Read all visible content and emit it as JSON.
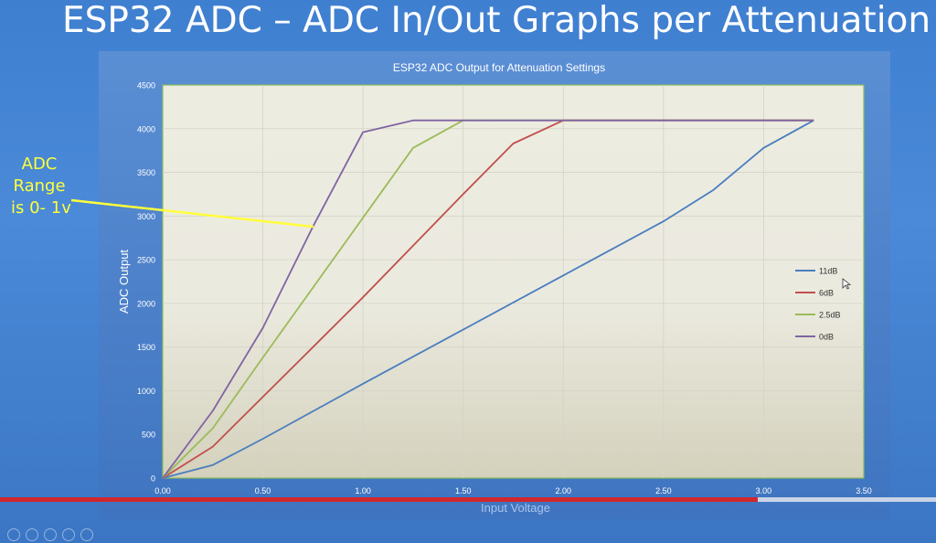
{
  "slide": {
    "title": "ESP32 ADC – ADC In/Out Graphs per Attenuation"
  },
  "callout": {
    "lines": [
      "ADC",
      "Range",
      "is 0- 1v"
    ],
    "color": "#ffff3b"
  },
  "player": {
    "progress": 0.81,
    "progress_color": "#d1272d",
    "controls": [
      "play-icon",
      "pen-icon",
      "slides-icon",
      "zoom-icon",
      "more-icon"
    ]
  },
  "chart_data": {
    "type": "line",
    "title": "ESP32 ADC Output for Attenuation Settings",
    "xlabel": "Input Voltage",
    "ylabel": "ADC Output",
    "xlim": [
      0,
      3.5
    ],
    "ylim": [
      0,
      4500
    ],
    "xticks": [
      "0.00",
      "0.50",
      "1.00",
      "1.50",
      "2.00",
      "2.50",
      "3.00",
      "3.50"
    ],
    "yticks": [
      "0",
      "500",
      "1000",
      "1500",
      "2000",
      "2500",
      "3000",
      "3500",
      "4000",
      "4500"
    ],
    "grid": true,
    "legend": "right",
    "series": [
      {
        "name": "11dB",
        "color": "#4a7ebf",
        "points": [
          [
            0,
            0
          ],
          [
            0.25,
            150
          ],
          [
            0.5,
            450
          ],
          [
            1.0,
            1080
          ],
          [
            1.5,
            1700
          ],
          [
            2.0,
            2320
          ],
          [
            2.5,
            2940
          ],
          [
            2.75,
            3300
          ],
          [
            3.0,
            3780
          ],
          [
            3.25,
            4095
          ]
        ]
      },
      {
        "name": "6dB",
        "color": "#c0504d",
        "points": [
          [
            0,
            0
          ],
          [
            0.25,
            360
          ],
          [
            0.5,
            930
          ],
          [
            0.75,
            1500
          ],
          [
            1.0,
            2070
          ],
          [
            1.5,
            3250
          ],
          [
            1.75,
            3830
          ],
          [
            2.0,
            4095
          ],
          [
            3.25,
            4095
          ]
        ]
      },
      {
        "name": "2.5dB",
        "color": "#9bbb59",
        "points": [
          [
            0,
            0
          ],
          [
            0.25,
            570
          ],
          [
            0.5,
            1380
          ],
          [
            1.0,
            2980
          ],
          [
            1.25,
            3780
          ],
          [
            1.5,
            4095
          ],
          [
            3.25,
            4095
          ]
        ]
      },
      {
        "name": "0dB",
        "color": "#8064a2",
        "points": [
          [
            0,
            0
          ],
          [
            0.25,
            770
          ],
          [
            0.5,
            1720
          ],
          [
            0.75,
            2880
          ],
          [
            1.0,
            3960
          ],
          [
            1.25,
            4095
          ],
          [
            3.25,
            4095
          ]
        ]
      }
    ]
  }
}
